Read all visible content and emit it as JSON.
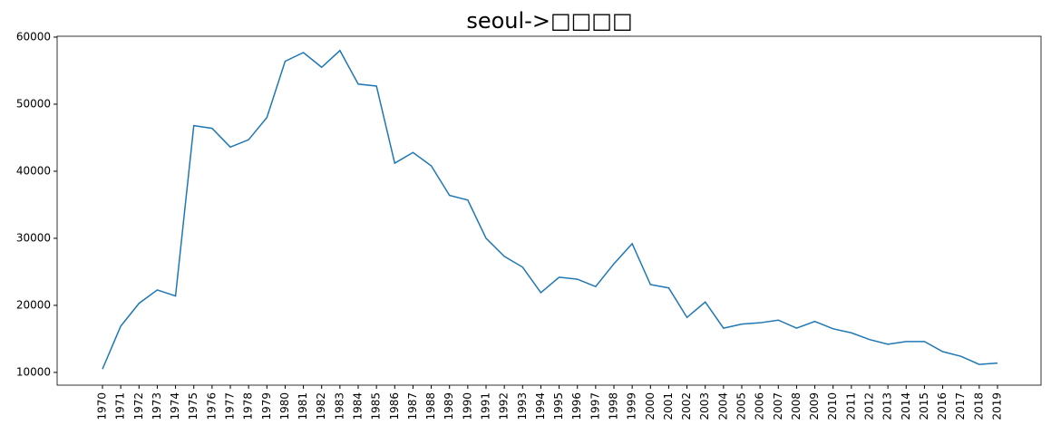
{
  "chart_data": {
    "type": "line",
    "title": "seoul->□□□□",
    "categories": [
      "1970",
      "1971",
      "1972",
      "1973",
      "1974",
      "1975",
      "1976",
      "1977",
      "1978",
      "1979",
      "1980",
      "1981",
      "1982",
      "1983",
      "1984",
      "1985",
      "1986",
      "1987",
      "1988",
      "1989",
      "1990",
      "1991",
      "1992",
      "1993",
      "1994",
      "1995",
      "1996",
      "1997",
      "1998",
      "1999",
      "2000",
      "2001",
      "2002",
      "2003",
      "2004",
      "2005",
      "2006",
      "2007",
      "2008",
      "2009",
      "2010",
      "2011",
      "2012",
      "2013",
      "2014",
      "2015",
      "2016",
      "2017",
      "2018",
      "2019"
    ],
    "values": [
      10500,
      16900,
      20300,
      22300,
      21400,
      46800,
      46400,
      43600,
      44700,
      48000,
      56400,
      57700,
      55500,
      58000,
      53000,
      52700,
      41200,
      42800,
      40800,
      36400,
      35700,
      30000,
      27300,
      25700,
      21900,
      24200,
      23900,
      22800,
      26200,
      29200,
      23100,
      22600,
      18200,
      20500,
      16600,
      17200,
      17400,
      17800,
      16600,
      17600,
      16500,
      15900,
      14900,
      14200,
      14600,
      14600,
      13100,
      12400,
      11200,
      11400
    ],
    "color": "#1f77b4",
    "ylim": [
      8100,
      60130
    ],
    "yticks": [
      10000,
      20000,
      30000,
      40000,
      50000,
      60000
    ],
    "grid": false
  }
}
